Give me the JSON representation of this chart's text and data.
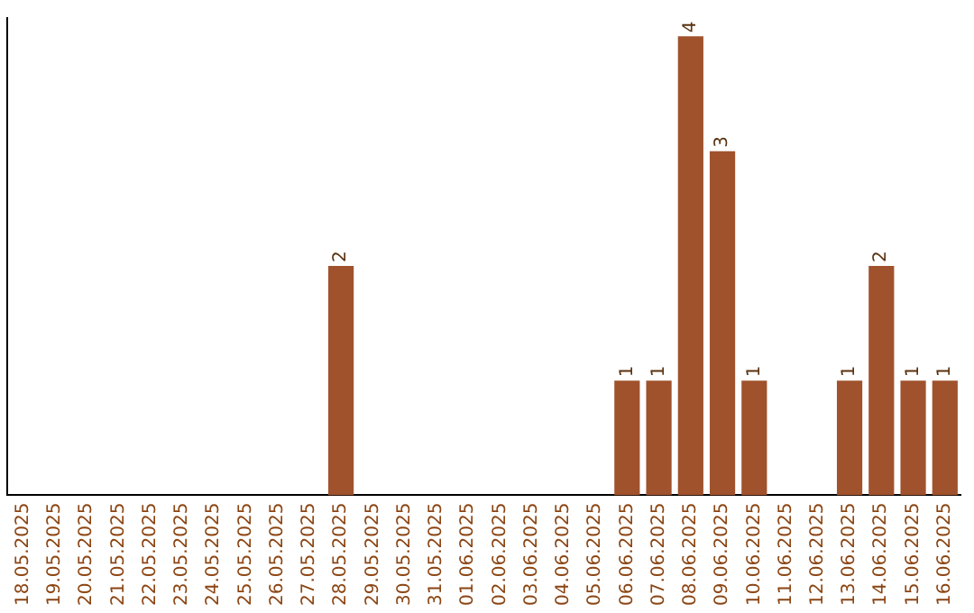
{
  "chart_data": {
    "type": "bar",
    "categories": [
      "18.05.2025",
      "19.05.2025",
      "20.05.2025",
      "21.05.2025",
      "22.05.2025",
      "23.05.2025",
      "24.05.2025",
      "25.05.2025",
      "26.05.2025",
      "27.05.2025",
      "28.05.2025",
      "29.05.2025",
      "30.05.2025",
      "31.05.2025",
      "01.06.2025",
      "02.06.2025",
      "03.06.2025",
      "04.06.2025",
      "05.06.2025",
      "06.06.2025",
      "07.06.2025",
      "08.06.2025",
      "09.06.2025",
      "10.06.2025",
      "11.06.2025",
      "12.06.2025",
      "13.06.2025",
      "14.06.2025",
      "15.06.2025",
      "16.06.2025"
    ],
    "values": [
      0,
      0,
      0,
      0,
      0,
      0,
      0,
      0,
      0,
      0,
      2,
      0,
      0,
      0,
      0,
      0,
      0,
      0,
      0,
      1,
      1,
      4,
      3,
      1,
      0,
      0,
      1,
      2,
      1,
      1
    ],
    "value_labels": [
      null,
      null,
      null,
      null,
      null,
      null,
      null,
      null,
      null,
      null,
      "2",
      null,
      null,
      null,
      null,
      null,
      null,
      null,
      null,
      "1",
      "1",
      "4",
      "3",
      "1",
      null,
      null,
      "1",
      "2",
      "1",
      "1"
    ],
    "color": "#a0522d",
    "tick_labels": "x",
    "grid": false,
    "legend": false
  }
}
